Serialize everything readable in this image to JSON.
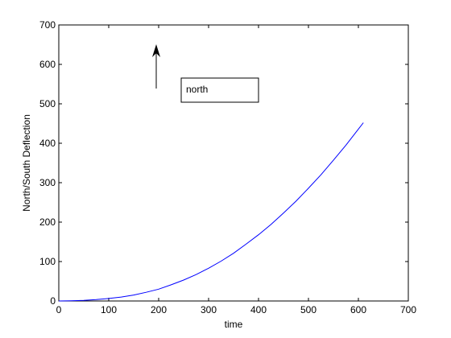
{
  "chart_data": {
    "type": "line",
    "title": "",
    "xlabel": "time",
    "ylabel": "North/South Deflection",
    "xlim": [
      0,
      700
    ],
    "ylim": [
      0,
      700
    ],
    "xticks": [
      0,
      100,
      200,
      300,
      400,
      500,
      600,
      700
    ],
    "yticks": [
      0,
      100,
      200,
      300,
      400,
      500,
      600,
      700
    ],
    "grid": false,
    "line_color": "#0000ff",
    "series": [
      {
        "x": [
          0,
          25,
          50,
          75,
          100,
          125,
          150,
          175,
          200,
          225,
          250,
          275,
          300,
          325,
          350,
          375,
          400,
          425,
          450,
          475,
          500,
          525,
          550,
          575,
          600,
          610
        ],
        "y": [
          0,
          0.4,
          1.5,
          3.4,
          6.3,
          10,
          15,
          22,
          30,
          41,
          53,
          67,
          83,
          101,
          121,
          144,
          168,
          194,
          223,
          253,
          286,
          320,
          357,
          395,
          436,
          452
        ]
      }
    ],
    "annotations": [
      {
        "type": "text_box",
        "text": "north"
      },
      {
        "type": "arrow",
        "direction": "up"
      }
    ]
  }
}
